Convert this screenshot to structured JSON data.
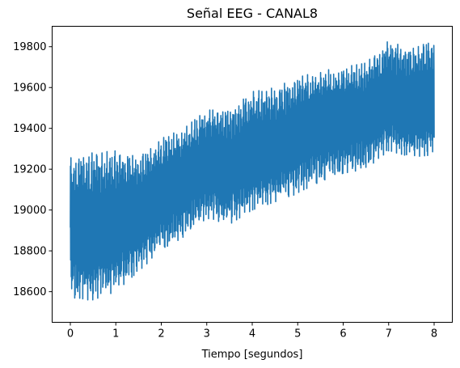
{
  "chart_data": {
    "type": "line",
    "title": "Señal EEG - CANAL8",
    "xlabel": "Tiempo [segundos]",
    "ylabel": "",
    "xlim": [
      -0.4,
      8.4
    ],
    "ylim": [
      18450,
      19900
    ],
    "xticks": [
      0,
      1,
      2,
      3,
      4,
      5,
      6,
      7,
      8
    ],
    "xtick_labels": [
      "0",
      "1",
      "2",
      "3",
      "4",
      "5",
      "6",
      "7",
      "8"
    ],
    "yticks": [
      18600,
      18800,
      19000,
      19200,
      19400,
      19600,
      19800
    ],
    "ytick_labels": [
      "18600",
      "18800",
      "19000",
      "19200",
      "19400",
      "19600",
      "19800"
    ],
    "grid": false,
    "legend": "none",
    "series": [
      {
        "color": "#1f77b4",
        "envelope": {
          "x": [
            0,
            0.5,
            1,
            1.5,
            2,
            2.5,
            3,
            3.5,
            4,
            4.5,
            5,
            5.5,
            6,
            6.5,
            7,
            7.5,
            8
          ],
          "upper": [
            19270,
            19280,
            19290,
            19270,
            19350,
            19400,
            19490,
            19490,
            19580,
            19600,
            19650,
            19680,
            19700,
            19720,
            19830,
            19790,
            19830
          ],
          "lower": [
            18560,
            18560,
            18600,
            18700,
            18800,
            18870,
            18960,
            18930,
            19000,
            19040,
            19080,
            19140,
            19180,
            19200,
            19290,
            19260,
            19270
          ]
        }
      }
    ]
  }
}
